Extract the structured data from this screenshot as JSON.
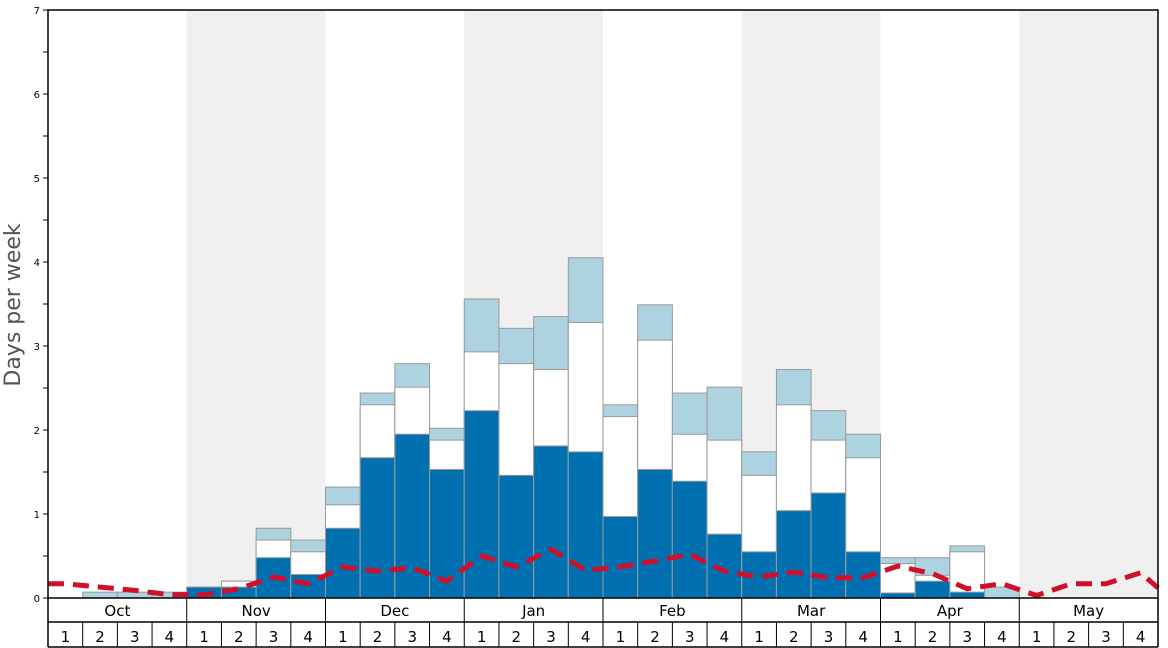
{
  "chart_data": {
    "type": "bar",
    "ylabel": "Days per week",
    "ylim": [
      0,
      7
    ],
    "y_ticks": [
      "0",
      "1",
      "2",
      "3",
      "4",
      "5",
      "6",
      "7"
    ],
    "months": [
      "Oct",
      "Nov",
      "Dec",
      "Jan",
      "Feb",
      "Mar",
      "Apr",
      "May"
    ],
    "week_labels": [
      "1",
      "2",
      "3",
      "4"
    ],
    "categories": [
      "Oct 1",
      "Oct 2",
      "Oct 3",
      "Oct 4",
      "Nov 1",
      "Nov 2",
      "Nov 3",
      "Nov 4",
      "Dec 1",
      "Dec 2",
      "Dec 3",
      "Dec 4",
      "Jan 1",
      "Jan 2",
      "Jan 3",
      "Jan 4",
      "Feb 1",
      "Feb 2",
      "Feb 3",
      "Feb 4",
      "Mar 1",
      "Mar 2",
      "Mar 3",
      "Mar 4",
      "Apr 1",
      "Apr 2",
      "Apr 3",
      "Apr 4",
      "May 1",
      "May 2",
      "May 3",
      "May 4"
    ],
    "series": [
      {
        "name": "",
        "color": "#0070b0",
        "values": [
          0,
          0,
          0,
          0,
          0.13,
          0.13,
          0.48,
          0.28,
          0.83,
          1.67,
          1.95,
          1.53,
          2.23,
          1.46,
          1.81,
          1.74,
          0.97,
          1.53,
          1.39,
          0.76,
          0.55,
          1.04,
          1.25,
          0.55,
          0.06,
          0.2,
          0.07,
          0,
          0,
          0,
          0,
          0
        ]
      },
      {
        "name": "",
        "color": "#ffffff",
        "values": [
          0,
          0,
          0,
          0,
          0.13,
          0.2,
          0.69,
          0.55,
          1.11,
          2.3,
          2.51,
          1.88,
          2.93,
          2.79,
          2.72,
          3.28,
          2.16,
          3.07,
          1.95,
          1.88,
          1.46,
          2.3,
          1.88,
          1.67,
          0.41,
          0.27,
          0.55,
          0,
          0,
          0,
          0,
          0
        ]
      },
      {
        "name": "",
        "color": "#aed3e0",
        "values": [
          0,
          0.07,
          0.07,
          0.07,
          0.13,
          0.2,
          0.83,
          0.69,
          1.32,
          2.44,
          2.79,
          2.02,
          3.56,
          3.21,
          3.35,
          4.05,
          2.3,
          3.49,
          2.44,
          2.51,
          1.74,
          2.72,
          2.23,
          1.95,
          0.48,
          0.48,
          0.62,
          0.13,
          0,
          0,
          0,
          0
        ]
      },
      {
        "name": "",
        "color": "#d0102b",
        "values": [
          0.17,
          0.13,
          0.09,
          0.04,
          0.04,
          0.11,
          0.25,
          0.17,
          0.37,
          0.32,
          0.36,
          0.2,
          0.5,
          0.37,
          0.58,
          0.33,
          0.37,
          0.44,
          0.52,
          0.32,
          0.25,
          0.31,
          0.24,
          0.24,
          0.38,
          0.29,
          0.11,
          0.17,
          0.03,
          0.17,
          0.17,
          0.3
        ]
      }
    ],
    "grid": false,
    "legend": "none"
  },
  "colors": {
    "band_shade": "#f0f0f0",
    "dark_bar": "#0070b0",
    "light_bar": "#aed3e0",
    "white_bar": "#ffffff",
    "trend_line": "#d0102b",
    "axis": "#000000"
  }
}
